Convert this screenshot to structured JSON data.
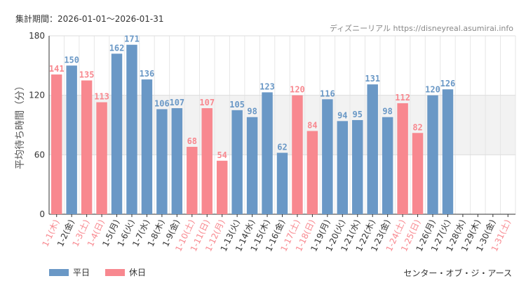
{
  "header": {
    "period": "集計期間：2026-01-01〜2026-01-31",
    "credit": "ディズニーリアル https://disneyreal.asumirai.info"
  },
  "legend": {
    "weekday": "平日",
    "holiday": "休日"
  },
  "attraction": "センター・オブ・ジ・アース",
  "colors": {
    "weekday": "#6a98c6",
    "holiday": "#f8888f",
    "band": "#f2f2f2",
    "grid": "#e6e6e6"
  },
  "chart_data": {
    "type": "bar",
    "ylabel": "平均待ち時間（分）",
    "ylim": [
      0,
      180
    ],
    "yticks": [
      0,
      60,
      120,
      180
    ],
    "categories": [
      "1-1(木)",
      "1-2(金)",
      "1-3(土)",
      "1-4(日)",
      "1-5(月)",
      "1-6(火)",
      "1-7(水)",
      "1-8(木)",
      "1-9(金)",
      "1-10(土)",
      "1-11(日)",
      "1-12(月)",
      "1-13(火)",
      "1-14(水)",
      "1-15(木)",
      "1-16(金)",
      "1-17(土)",
      "1-18(日)",
      "1-19(月)",
      "1-20(火)",
      "1-21(水)",
      "1-22(木)",
      "1-23(金)",
      "1-24(土)",
      "1-25(日)",
      "1-26(月)",
      "1-27(火)",
      "1-28(水)",
      "1-29(木)",
      "1-30(金)",
      "1-31(土)"
    ],
    "values": [
      141,
      150,
      135,
      113,
      162,
      171,
      136,
      106,
      107,
      68,
      107,
      54,
      105,
      98,
      123,
      62,
      120,
      84,
      116,
      94,
      95,
      131,
      98,
      112,
      82,
      120,
      126,
      null,
      null,
      null,
      null
    ],
    "day_type": [
      "holiday",
      "weekday",
      "holiday",
      "holiday",
      "weekday",
      "weekday",
      "weekday",
      "weekday",
      "weekday",
      "holiday",
      "holiday",
      "holiday",
      "weekday",
      "weekday",
      "weekday",
      "weekday",
      "holiday",
      "holiday",
      "weekday",
      "weekday",
      "weekday",
      "weekday",
      "weekday",
      "holiday",
      "holiday",
      "weekday",
      "weekday",
      "weekday",
      "weekday",
      "weekday",
      "holiday"
    ],
    "series": [
      {
        "name": "平日",
        "key": "weekday"
      },
      {
        "name": "休日",
        "key": "holiday"
      }
    ],
    "band_range": [
      60,
      120
    ]
  }
}
